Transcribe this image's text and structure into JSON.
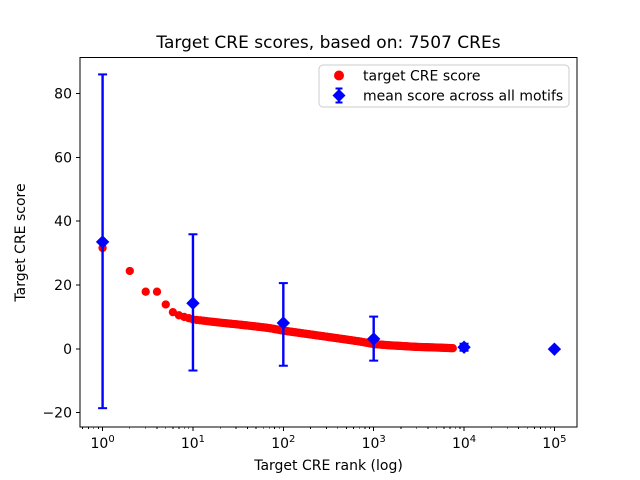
{
  "title": "Target CRE scores, based on: 7507 CREs",
  "axes": {
    "xlabel": "Target CRE rank (log)",
    "ylabel": "Target CRE score",
    "x_tick_base": "10",
    "x_tick_exponents": [
      0,
      1,
      2,
      3,
      4,
      5
    ],
    "y_ticks": [
      {
        "value": -20,
        "label": "−20"
      },
      {
        "value": 0,
        "label": "0"
      },
      {
        "value": 20,
        "label": "20"
      },
      {
        "value": 40,
        "label": "40"
      },
      {
        "value": 60,
        "label": "60"
      },
      {
        "value": 80,
        "label": "80"
      }
    ]
  },
  "legend": {
    "items": [
      {
        "label": "target CRE score",
        "marker": "circle",
        "color": "#ff0000"
      },
      {
        "label": "mean score across all motifs",
        "marker": "diamond-errorbar",
        "color": "#0000ff"
      }
    ]
  },
  "colors": {
    "red_series": "#ff0000",
    "blue_series": "#0000ff",
    "axis": "#000000",
    "legend_border": "#cccccc",
    "background": "#ffffff"
  },
  "chart_data": {
    "type": "scatter",
    "title": "Target CRE scores, based on: 7507 CREs",
    "xlabel": "Target CRE rank (log)",
    "ylabel": "Target CRE score",
    "x_scale": "log",
    "xlim_log10": [
      -0.25,
      5.25
    ],
    "ylim": [
      -24.5,
      91.3
    ],
    "x_major_ticks": [
      1,
      10,
      100,
      1000,
      10000,
      100000
    ],
    "y_major_ticks": [
      -20,
      0,
      20,
      40,
      60,
      80
    ],
    "grid": false,
    "legend_position": "upper right",
    "series": [
      {
        "name": "target CRE score",
        "type": "scatter",
        "marker": "circle",
        "color": "#ff0000",
        "n_points": 7507,
        "note": "dense sorted scores at every integer rank 1..7507; anchor samples below, log-x interpolated",
        "anchors_rank_score": [
          [
            1,
            31.6
          ],
          [
            2,
            24.4
          ],
          [
            3,
            17.9
          ],
          [
            4,
            17.9
          ],
          [
            5,
            13.9
          ],
          [
            6,
            11.5
          ],
          [
            7,
            10.5
          ],
          [
            8,
            10.0
          ],
          [
            9,
            9.6
          ],
          [
            10,
            9.2
          ],
          [
            15,
            8.6
          ],
          [
            20,
            8.2
          ],
          [
            30,
            7.7
          ],
          [
            50,
            7.0
          ],
          [
            70,
            6.5
          ],
          [
            100,
            5.7
          ],
          [
            150,
            5.0
          ],
          [
            200,
            4.5
          ],
          [
            300,
            3.8
          ],
          [
            500,
            2.9
          ],
          [
            700,
            2.3
          ],
          [
            1000,
            1.5
          ],
          [
            1500,
            1.1
          ],
          [
            2000,
            0.9
          ],
          [
            3000,
            0.6
          ],
          [
            5000,
            0.4
          ],
          [
            7507,
            0.2
          ]
        ]
      },
      {
        "name": "mean score across all motifs",
        "type": "errorbar",
        "marker": "diamond",
        "color": "#0000ff",
        "points": [
          {
            "x": 1,
            "mean": 33.5,
            "err_lo": -18.6,
            "err_hi": 86.0
          },
          {
            "x": 10,
            "mean": 14.3,
            "err_lo": -6.8,
            "err_hi": 35.9
          },
          {
            "x": 100,
            "mean": 8.1,
            "err_lo": -5.3,
            "err_hi": 20.6
          },
          {
            "x": 1000,
            "mean": 3.1,
            "err_lo": -3.7,
            "err_hi": 10.1
          },
          {
            "x": 10000,
            "mean": 0.5,
            "err_lo": -0.6,
            "err_hi": 1.6
          },
          {
            "x": 100000,
            "mean": -0.1,
            "err_lo": -0.5,
            "err_hi": 0.3
          }
        ]
      }
    ]
  }
}
